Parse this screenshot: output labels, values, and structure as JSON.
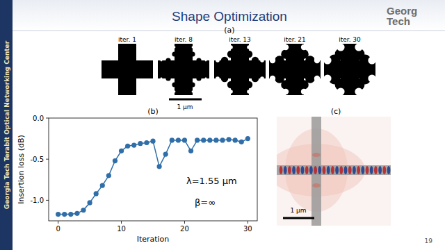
{
  "slide": {
    "title": "Shape Optimization",
    "sidebar": "Georgia Tech Terabit Optical Networking Center",
    "logo": [
      "Georg",
      "Tech"
    ],
    "page": "19"
  },
  "panel_a": {
    "label": "(a)",
    "iterations": [
      "iter. 1",
      "iter. 8",
      "iter. 13",
      "iter. 21",
      "iter. 30"
    ],
    "scale_bar": "1 μm"
  },
  "panel_b": {
    "label": "(b)"
  },
  "panel_c": {
    "label": "(c)",
    "scale_bar": "1 μm"
  },
  "chart_data": {
    "type": "line",
    "x_label": "Iteration",
    "y_label": "Insertion loss (dB)",
    "annotations": [
      "λ=1.55 μm",
      "β=∞"
    ],
    "x": [
      0,
      1,
      2,
      3,
      4,
      5,
      6,
      7,
      8,
      9,
      10,
      11,
      12,
      13,
      14,
      15,
      16,
      17,
      18,
      19,
      20,
      21,
      22,
      23,
      24,
      25,
      26,
      27,
      28,
      29,
      30
    ],
    "values": [
      -1.17,
      -1.17,
      -1.17,
      -1.16,
      -1.12,
      -1.03,
      -0.92,
      -0.82,
      -0.7,
      -0.52,
      -0.4,
      -0.34,
      -0.33,
      -0.31,
      -0.3,
      -0.28,
      -0.59,
      -0.44,
      -0.27,
      -0.27,
      -0.27,
      -0.4,
      -0.27,
      -0.27,
      -0.27,
      -0.27,
      -0.27,
      -0.26,
      -0.27,
      -0.29,
      -0.25
    ],
    "color": "#2f6ea8",
    "marker": "circle",
    "line_style": "solid",
    "xlim": [
      -1.5,
      31.5
    ],
    "xticks": [
      0,
      10,
      20,
      30
    ],
    "ylim": [
      -1.25,
      0.0
    ],
    "yticks": [
      {
        "value": -1.0,
        "label": "-1.0"
      },
      {
        "value": -0.5,
        "label": "-0.5"
      },
      {
        "value": 0.0,
        "label": "0.0"
      }
    ],
    "grid": false
  }
}
